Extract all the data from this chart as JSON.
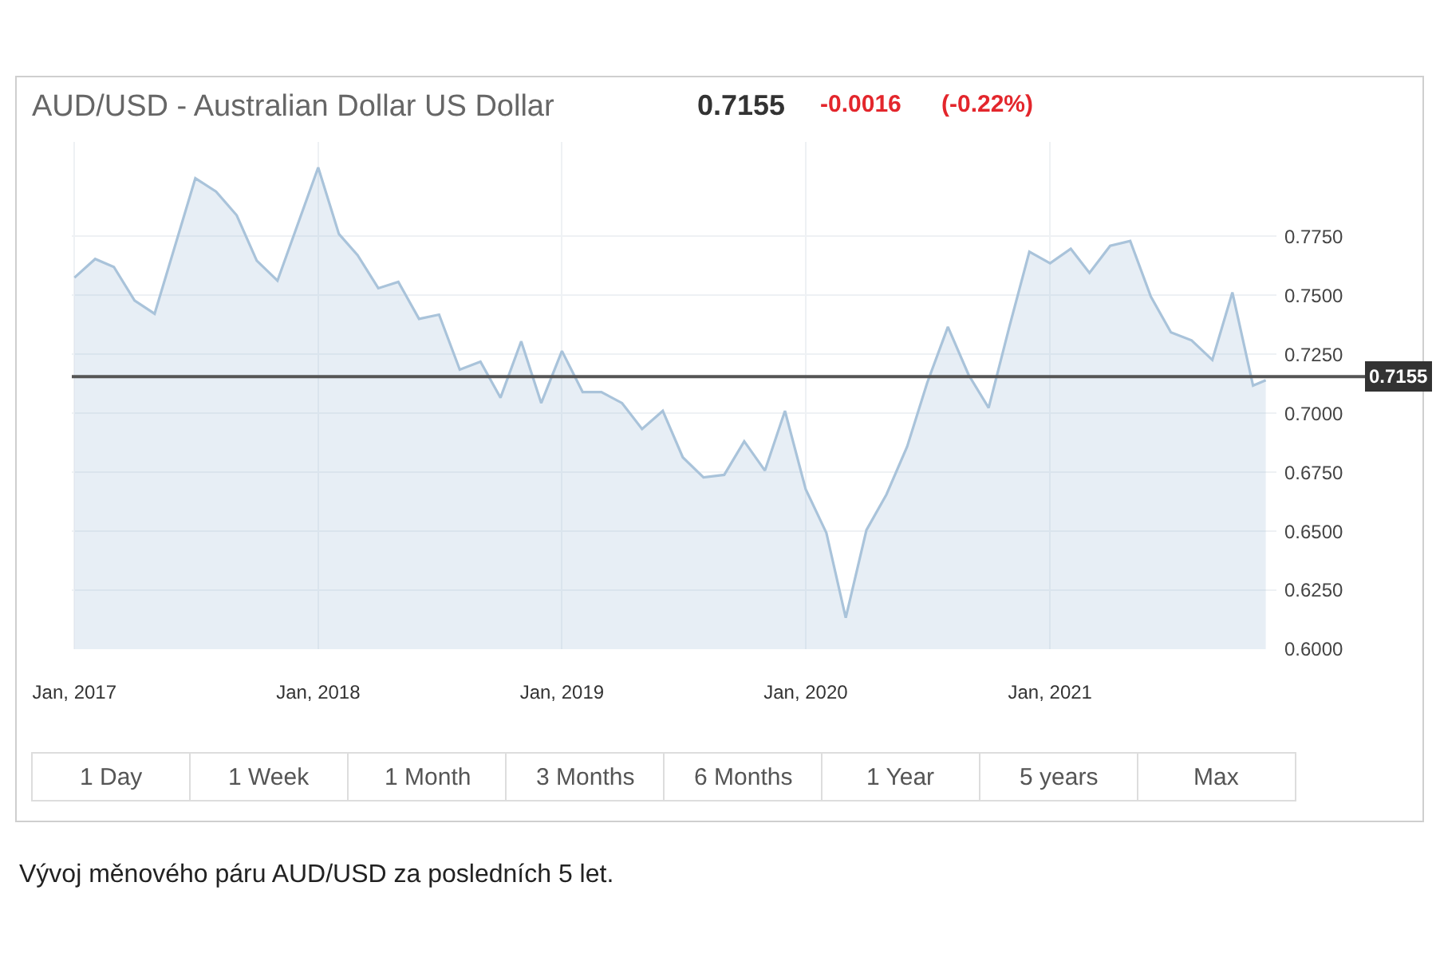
{
  "chart_data": {
    "type": "area",
    "title": "AUD/USD - Australian Dollar US Dollar",
    "x": [
      "2017-01",
      "2017-02",
      "2017-03",
      "2017-04",
      "2017-05",
      "2017-07",
      "2017-08",
      "2017-09",
      "2017-10",
      "2017-11",
      "2018-01",
      "2018-02",
      "2018-03",
      "2018-04",
      "2018-05",
      "2018-06",
      "2018-07",
      "2018-08",
      "2018-09",
      "2018-10",
      "2018-11",
      "2018-12",
      "2019-01",
      "2019-02",
      "2019-03",
      "2019-04",
      "2019-05",
      "2019-06",
      "2019-07",
      "2019-08",
      "2019-09",
      "2019-10",
      "2019-11",
      "2019-12",
      "2020-01",
      "2020-02",
      "2020-03",
      "2020-04",
      "2020-05",
      "2020-06",
      "2020-07",
      "2020-08",
      "2020-09",
      "2020-10",
      "2020-11",
      "2020-12",
      "2021-01",
      "2021-02",
      "2021-03",
      "2021-04",
      "2021-05",
      "2021-06",
      "2021-07",
      "2021-08",
      "2021-09",
      "2021-10",
      "2021-11",
      "2021-11-20"
    ],
    "series": [
      {
        "color": "#a9c3da",
        "values": [
          0.7575,
          0.7654,
          0.762,
          0.7478,
          0.7422,
          0.7996,
          0.794,
          0.7839,
          0.7647,
          0.7562,
          0.8042,
          0.776,
          0.767,
          0.753,
          0.7557,
          0.74,
          0.7418,
          0.7185,
          0.7219,
          0.7066,
          0.7305,
          0.7043,
          0.7264,
          0.709,
          0.709,
          0.7043,
          0.6933,
          0.701,
          0.6813,
          0.6728,
          0.6739,
          0.6881,
          0.6757,
          0.701,
          0.6678,
          0.6493,
          0.6133,
          0.6505,
          0.6656,
          0.6859,
          0.7129,
          0.7366,
          0.7163,
          0.7023,
          0.7366,
          0.7685,
          0.7636,
          0.7697,
          0.7595,
          0.771,
          0.773,
          0.7494,
          0.7343,
          0.7309,
          0.7226,
          0.7512,
          0.7117,
          0.714
        ]
      }
    ],
    "xlim": [
      "2016-12-28",
      "2021-12-06"
    ],
    "xticks": [
      {
        "value": "2017-01-01",
        "label": "Jan, 2017"
      },
      {
        "value": "2018-01-01",
        "label": "Jan, 2018"
      },
      {
        "value": "2019-01-01",
        "label": "Jan, 2019"
      },
      {
        "value": "2020-01-01",
        "label": "Jan, 2020"
      },
      {
        "value": "2021-01-01",
        "label": "Jan, 2021"
      }
    ],
    "ylim": [
      0.6,
      0.815
    ],
    "yticks": [
      {
        "value": 0.6,
        "label": "0.6000"
      },
      {
        "value": 0.625,
        "label": "0.6250"
      },
      {
        "value": 0.65,
        "label": "0.6500"
      },
      {
        "value": 0.675,
        "label": "0.6750"
      },
      {
        "value": 0.7,
        "label": "0.7000"
      },
      {
        "value": 0.725,
        "label": "0.7250"
      },
      {
        "value": 0.75,
        "label": "0.7500"
      },
      {
        "value": 0.775,
        "label": "0.7750"
      }
    ],
    "ref_lines": [
      {
        "axis": "y",
        "value": 0.7155,
        "label": "0.7155",
        "color": "#555555"
      }
    ],
    "grid": true,
    "annotations": [
      "0.7155",
      "-0.0016",
      "(-0.22%)",
      "1 Day",
      "1 Week",
      "1 Month",
      "3 Months",
      "6 Months",
      "1 Year",
      "5 years",
      "Max",
      "Vývoj měnového páru AUD/USD za posledních 5 let."
    ]
  }
}
